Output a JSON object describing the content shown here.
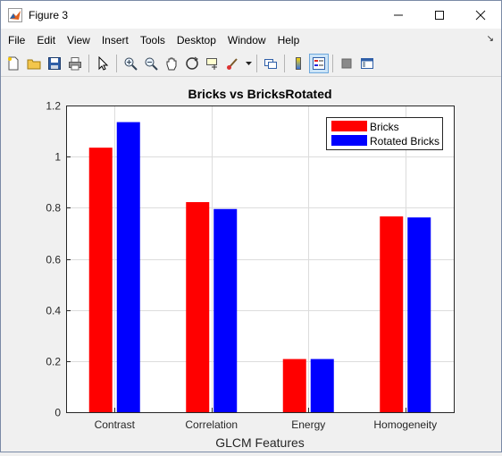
{
  "window": {
    "title": "Figure 3",
    "controls": [
      "minimize",
      "maximize",
      "close"
    ]
  },
  "menu": {
    "items": [
      "File",
      "Edit",
      "View",
      "Insert",
      "Tools",
      "Desktop",
      "Window",
      "Help"
    ]
  },
  "toolbar": {
    "icons": [
      "new-figure-icon",
      "open-file-icon",
      "save-icon",
      "print-icon",
      "pointer-icon",
      "zoom-in-icon",
      "zoom-out-icon",
      "pan-icon",
      "rotate-3d-icon",
      "data-cursor-icon",
      "brush-icon",
      "link-icon",
      "colorbar-icon",
      "legend-icon",
      "hide-plot-tools-icon",
      "show-plot-tools-icon"
    ]
  },
  "chart_data": {
    "type": "bar",
    "title": "Bricks vs BricksRotated",
    "xlabel": "GLCM Features",
    "ylabel": "",
    "categories": [
      "Contrast",
      "Correlation",
      "Energy",
      "Homogeneity"
    ],
    "series": [
      {
        "name": "Bricks",
        "values": [
          1.035,
          0.822,
          0.208,
          0.766
        ],
        "color": "#ff0000"
      },
      {
        "name": "Rotated Bricks",
        "values": [
          1.135,
          0.795,
          0.208,
          0.762
        ],
        "color": "#0000ff"
      }
    ],
    "ylim": [
      0,
      1.2
    ],
    "yticks": [
      "0",
      "0.2",
      "0.4",
      "0.6",
      "0.8",
      "1",
      "1.2"
    ],
    "grid": true,
    "legend_position": "top-right"
  }
}
